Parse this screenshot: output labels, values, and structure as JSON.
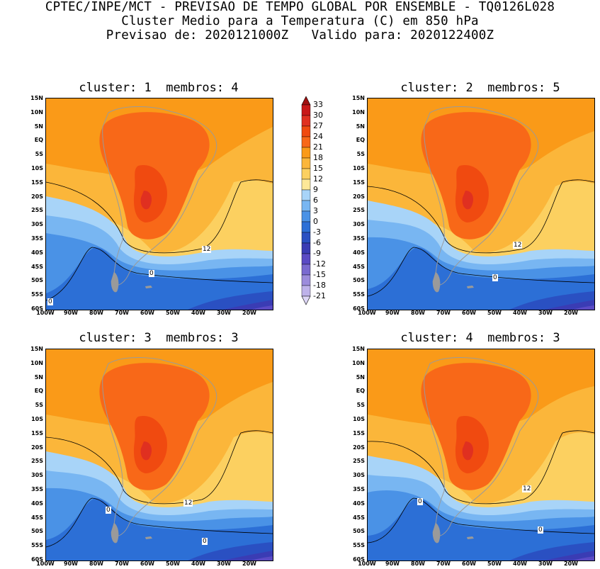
{
  "header": {
    "line1": "CPTEC/INPE/MCT - PREVISAO DE TEMPO GLOBAL POR ENSEMBLE - TQ0126L028",
    "line2": "Cluster Medio para a Temperatura (C) em 850 hPa",
    "line3": "Previsao de: 2020121000Z   Valido para: 2020122400Z"
  },
  "panels": [
    {
      "title": "cluster: 1  membros: 4"
    },
    {
      "title": "cluster: 2  membros: 5"
    },
    {
      "title": "cluster: 3  membros: 3"
    },
    {
      "title": "cluster: 4  membros: 3"
    }
  ],
  "axes": {
    "lat_labels": [
      "15N",
      "10N",
      "5N",
      "EQ",
      "5S",
      "10S",
      "15S",
      "20S",
      "25S",
      "30S",
      "35S",
      "40S",
      "45S",
      "50S",
      "55S",
      "60S"
    ],
    "lon_labels": [
      "100W",
      "90W",
      "80W",
      "70W",
      "60W",
      "50W",
      "40W",
      "30W",
      "20W"
    ]
  },
  "colorbar": {
    "levels": [
      "33",
      "30",
      "27",
      "24",
      "21",
      "18",
      "15",
      "12",
      "9",
      "6",
      "3",
      "0",
      "-3",
      "-6",
      "-9",
      "-12",
      "-15",
      "-18",
      "-21"
    ],
    "colors": [
      "#a01010",
      "#c81818",
      "#e03020",
      "#f04a10",
      "#f86818",
      "#fa9a18",
      "#fbb63a",
      "#fcd060",
      "#fde898",
      "#a8d4f8",
      "#78b6f2",
      "#4a92e6",
      "#2c6fd6",
      "#2a50c2",
      "#3a3cb4",
      "#5a4ac4",
      "#7a6ad0",
      "#9c8cdc",
      "#beb2ea",
      "#ddd6f6"
    ]
  },
  "contour_labels": {
    "p1": [
      "12",
      "0",
      "0"
    ],
    "p2": [
      "12",
      "0"
    ],
    "p3": [
      "12",
      "0",
      "0"
    ],
    "p4": [
      "12",
      "0",
      "0"
    ]
  }
}
